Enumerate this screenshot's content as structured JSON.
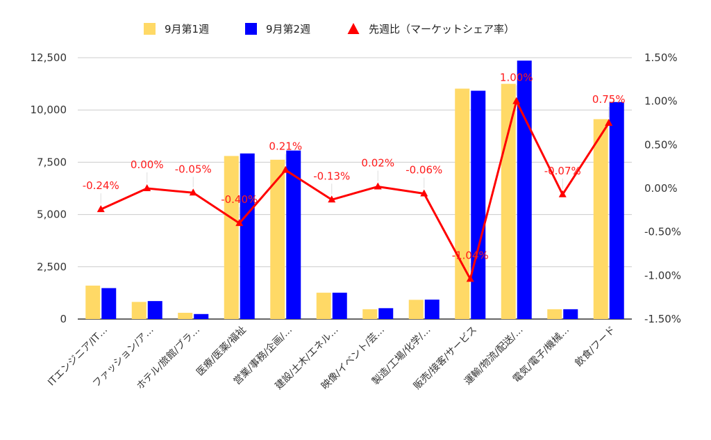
{
  "chart_data": {
    "type": "bar",
    "categories": [
      "ITエンジニア/IT…",
      "ファッション/ア…",
      "ホテル/旅館/ブラ…",
      "医療/医薬/福祉",
      "営業/事務/企画/…",
      "建設/土木/エネル…",
      "映像/イベント/芸…",
      "製造/工場/化学/…",
      "販売/接客/サービス",
      "運輸/物流/配送/…",
      "電気/電子/機械…",
      "飲食/フード"
    ],
    "series": [
      {
        "name": "9月第1週",
        "kind": "bar",
        "axis": "left",
        "color": "#FFD966",
        "values": [
          1600,
          820,
          300,
          7800,
          7620,
          1260,
          470,
          920,
          11020,
          11250,
          470,
          9560
        ]
      },
      {
        "name": "9月第2週",
        "kind": "bar",
        "axis": "left",
        "color": "#0000FF",
        "values": [
          1480,
          860,
          240,
          7920,
          8060,
          1260,
          520,
          930,
          10920,
          12360,
          470,
          10380
        ]
      },
      {
        "name": "先週比（マーケットシェア率）",
        "kind": "line",
        "axis": "right",
        "color": "#FF0000",
        "values": [
          -0.24,
          0.0,
          -0.05,
          -0.4,
          0.21,
          -0.13,
          0.02,
          -0.06,
          -1.04,
          1.0,
          -0.07,
          0.75
        ],
        "labels": [
          "-0.24%",
          "0.00%",
          "-0.05%",
          "-0.40%",
          "0.21%",
          "-0.13%",
          "0.02%",
          "-0.06%",
          "-1.04%",
          "1.00%",
          "-0.07%",
          "0.75%"
        ]
      }
    ],
    "y_left": {
      "min": 0,
      "max": 12500,
      "ticks": [
        "0",
        "2,500",
        "5,000",
        "7,500",
        "10,000",
        "12,500"
      ]
    },
    "y_right": {
      "min": -1.5,
      "max": 1.5,
      "ticks": [
        "-1.50%",
        "-1.00%",
        "-0.50%",
        "0.00%",
        "0.50%",
        "1.00%",
        "1.50%"
      ]
    },
    "legend": {
      "position": "top",
      "items": [
        "9月第1週",
        "9月第2週",
        "先週比（マーケットシェア率）"
      ]
    },
    "grid": true,
    "title": "",
    "xlabel": "",
    "ylabel": ""
  }
}
